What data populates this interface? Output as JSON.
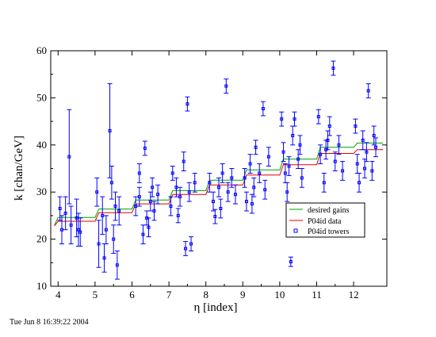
{
  "chart_data": {
    "type": "scatter",
    "xlabel": "η [index]",
    "ylabel": "k [chan/GeV]",
    "xlim": [
      3.8,
      12.9
    ],
    "ylim": [
      10,
      60
    ],
    "xticks": [
      "4",
      "5",
      "6",
      "7",
      "8",
      "9",
      "10",
      "11",
      "12"
    ],
    "yticks": [
      "10",
      "20",
      "30",
      "40",
      "50",
      "60"
    ],
    "grid": false,
    "legend_position": "right-center",
    "series": [
      {
        "name": "desired gains",
        "color": "#00a000",
        "style": "step",
        "x": [
          3.9,
          4.0,
          5.0,
          5.1,
          6.0,
          6.1,
          7.0,
          7.1,
          8.0,
          8.1,
          9.0,
          9.1,
          10.0,
          10.1,
          11.0,
          11.1,
          12.0,
          12.1,
          12.8
        ],
        "values": [
          23.0,
          24.6,
          24.6,
          26.4,
          26.4,
          28.3,
          28.3,
          30.3,
          30.3,
          32.5,
          32.5,
          34.7,
          34.7,
          37.0,
          37.0,
          39.5,
          39.5,
          40.4,
          40.4
        ]
      },
      {
        "name": "P04id data",
        "color": "#e00000",
        "style": "step",
        "x": [
          3.9,
          4.0,
          5.0,
          5.1,
          6.0,
          6.1,
          7.0,
          7.1,
          8.0,
          8.1,
          9.0,
          9.1,
          10.0,
          10.1,
          11.0,
          11.1,
          12.0,
          12.1,
          12.8
        ],
        "values": [
          22.8,
          23.8,
          23.8,
          25.6,
          25.6,
          27.5,
          27.5,
          29.5,
          29.5,
          31.5,
          31.5,
          33.6,
          33.6,
          35.8,
          35.8,
          38.2,
          38.2,
          39.0,
          39.0
        ]
      },
      {
        "name": "P04id towers",
        "color": "#0000ff",
        "style": "points-with-errors",
        "points": [
          {
            "x": 4.05,
            "y": 26.5,
            "err": 2.5
          },
          {
            "x": 4.1,
            "y": 22.0,
            "err": 3.0
          },
          {
            "x": 4.2,
            "y": 25.5,
            "err": 3.5
          },
          {
            "x": 4.3,
            "y": 37.5,
            "err": 10.0
          },
          {
            "x": 4.35,
            "y": 23.0,
            "err": 4.0
          },
          {
            "x": 4.5,
            "y": 24.5,
            "err": 4.0
          },
          {
            "x": 4.55,
            "y": 22.0,
            "err": 3.5
          },
          {
            "x": 4.6,
            "y": 21.5,
            "err": 3.0
          },
          {
            "x": 5.05,
            "y": 30.0,
            "err": 3.0
          },
          {
            "x": 5.1,
            "y": 19.0,
            "err": 5.0
          },
          {
            "x": 5.2,
            "y": 25.0,
            "err": 4.0
          },
          {
            "x": 5.25,
            "y": 16.0,
            "err": 3.0
          },
          {
            "x": 5.3,
            "y": 22.0,
            "err": 3.0
          },
          {
            "x": 5.4,
            "y": 43.0,
            "err": 10.0
          },
          {
            "x": 5.45,
            "y": 32.0,
            "err": 3.5
          },
          {
            "x": 5.5,
            "y": 20.0,
            "err": 3.0
          },
          {
            "x": 5.55,
            "y": 27.0,
            "err": 3.0
          },
          {
            "x": 5.6,
            "y": 14.5,
            "err": 3.0
          },
          {
            "x": 5.65,
            "y": 26.0,
            "err": 3.0
          },
          {
            "x": 6.1,
            "y": 27.0,
            "err": 2.0
          },
          {
            "x": 6.2,
            "y": 34.0,
            "err": 2.0
          },
          {
            "x": 6.3,
            "y": 21.0,
            "err": 2.0
          },
          {
            "x": 6.35,
            "y": 39.3,
            "err": 1.5
          },
          {
            "x": 6.4,
            "y": 24.5,
            "err": 1.5
          },
          {
            "x": 6.5,
            "y": 28.0,
            "err": 2.0
          },
          {
            "x": 6.55,
            "y": 31.0,
            "err": 2.0
          },
          {
            "x": 6.6,
            "y": 26.0,
            "err": 2.0
          },
          {
            "x": 6.7,
            "y": 29.5,
            "err": 2.0
          },
          {
            "x": 6.2,
            "y": 29.0,
            "err": 2.0
          },
          {
            "x": 6.45,
            "y": 22.5,
            "err": 2.0
          },
          {
            "x": 7.05,
            "y": 27.0,
            "err": 2.0
          },
          {
            "x": 7.1,
            "y": 34.0,
            "err": 1.5
          },
          {
            "x": 7.2,
            "y": 31.0,
            "err": 2.0
          },
          {
            "x": 7.3,
            "y": 29.0,
            "err": 2.0
          },
          {
            "x": 7.4,
            "y": 36.5,
            "err": 2.0
          },
          {
            "x": 7.45,
            "y": 18.0,
            "err": 1.5
          },
          {
            "x": 7.5,
            "y": 48.7,
            "err": 1.5
          },
          {
            "x": 7.6,
            "y": 19.0,
            "err": 1.5
          },
          {
            "x": 7.7,
            "y": 32.0,
            "err": 2.0
          },
          {
            "x": 7.25,
            "y": 25.0,
            "err": 1.5
          },
          {
            "x": 7.55,
            "y": 30.0,
            "err": 2.0
          },
          {
            "x": 8.1,
            "y": 32.0,
            "err": 2.0
          },
          {
            "x": 8.2,
            "y": 28.0,
            "err": 2.0
          },
          {
            "x": 8.25,
            "y": 24.8,
            "err": 1.5
          },
          {
            "x": 8.35,
            "y": 31.0,
            "err": 2.0
          },
          {
            "x": 8.45,
            "y": 34.0,
            "err": 2.0
          },
          {
            "x": 8.55,
            "y": 52.5,
            "err": 1.5
          },
          {
            "x": 8.6,
            "y": 30.0,
            "err": 2.0
          },
          {
            "x": 8.7,
            "y": 33.0,
            "err": 2.0
          },
          {
            "x": 8.8,
            "y": 29.5,
            "err": 2.0
          },
          {
            "x": 8.4,
            "y": 26.5,
            "err": 2.0
          },
          {
            "x": 9.05,
            "y": 33.0,
            "err": 2.0
          },
          {
            "x": 9.1,
            "y": 28.0,
            "err": 2.0
          },
          {
            "x": 9.2,
            "y": 36.0,
            "err": 2.0
          },
          {
            "x": 9.3,
            "y": 31.0,
            "err": 2.0
          },
          {
            "x": 9.35,
            "y": 39.5,
            "err": 1.5
          },
          {
            "x": 9.45,
            "y": 34.0,
            "err": 2.0
          },
          {
            "x": 9.55,
            "y": 47.7,
            "err": 1.5
          },
          {
            "x": 9.6,
            "y": 30.5,
            "err": 2.0
          },
          {
            "x": 9.7,
            "y": 37.5,
            "err": 2.0
          },
          {
            "x": 9.25,
            "y": 27.5,
            "err": 2.0
          },
          {
            "x": 10.05,
            "y": 45.5,
            "err": 1.5
          },
          {
            "x": 10.1,
            "y": 38.5,
            "err": 2.0
          },
          {
            "x": 10.15,
            "y": 34.0,
            "err": 2.0
          },
          {
            "x": 10.2,
            "y": 30.0,
            "err": 2.0
          },
          {
            "x": 10.3,
            "y": 15.2,
            "err": 1.0
          },
          {
            "x": 10.35,
            "y": 42.0,
            "err": 2.0
          },
          {
            "x": 10.4,
            "y": 45.5,
            "err": 1.5
          },
          {
            "x": 10.5,
            "y": 37.0,
            "err": 2.0
          },
          {
            "x": 10.55,
            "y": 40.0,
            "err": 2.0
          },
          {
            "x": 10.6,
            "y": 33.0,
            "err": 2.0
          },
          {
            "x": 10.25,
            "y": 35.5,
            "err": 2.0
          },
          {
            "x": 11.05,
            "y": 46.0,
            "err": 1.5
          },
          {
            "x": 11.1,
            "y": 38.0,
            "err": 2.0
          },
          {
            "x": 11.2,
            "y": 32.0,
            "err": 2.0
          },
          {
            "x": 11.3,
            "y": 41.0,
            "err": 2.0
          },
          {
            "x": 11.35,
            "y": 44.0,
            "err": 2.0
          },
          {
            "x": 11.45,
            "y": 56.3,
            "err": 1.5
          },
          {
            "x": 11.5,
            "y": 36.5,
            "err": 2.0
          },
          {
            "x": 11.6,
            "y": 40.0,
            "err": 2.0
          },
          {
            "x": 11.7,
            "y": 34.5,
            "err": 2.0
          },
          {
            "x": 11.25,
            "y": 39.0,
            "err": 2.0
          },
          {
            "x": 12.05,
            "y": 44.0,
            "err": 1.5
          },
          {
            "x": 12.1,
            "y": 36.0,
            "err": 2.0
          },
          {
            "x": 12.15,
            "y": 32.0,
            "err": 2.0
          },
          {
            "x": 12.25,
            "y": 41.0,
            "err": 2.0
          },
          {
            "x": 12.35,
            "y": 38.5,
            "err": 2.0
          },
          {
            "x": 12.4,
            "y": 51.5,
            "err": 1.5
          },
          {
            "x": 12.5,
            "y": 34.5,
            "err": 2.0
          },
          {
            "x": 12.55,
            "y": 42.0,
            "err": 2.0
          },
          {
            "x": 12.6,
            "y": 39.5,
            "err": 2.0
          },
          {
            "x": 12.3,
            "y": 35.0,
            "err": 2.0
          }
        ]
      }
    ]
  },
  "footer": {
    "timestamp": "Tue Jun  8 16:39:22 2004"
  }
}
